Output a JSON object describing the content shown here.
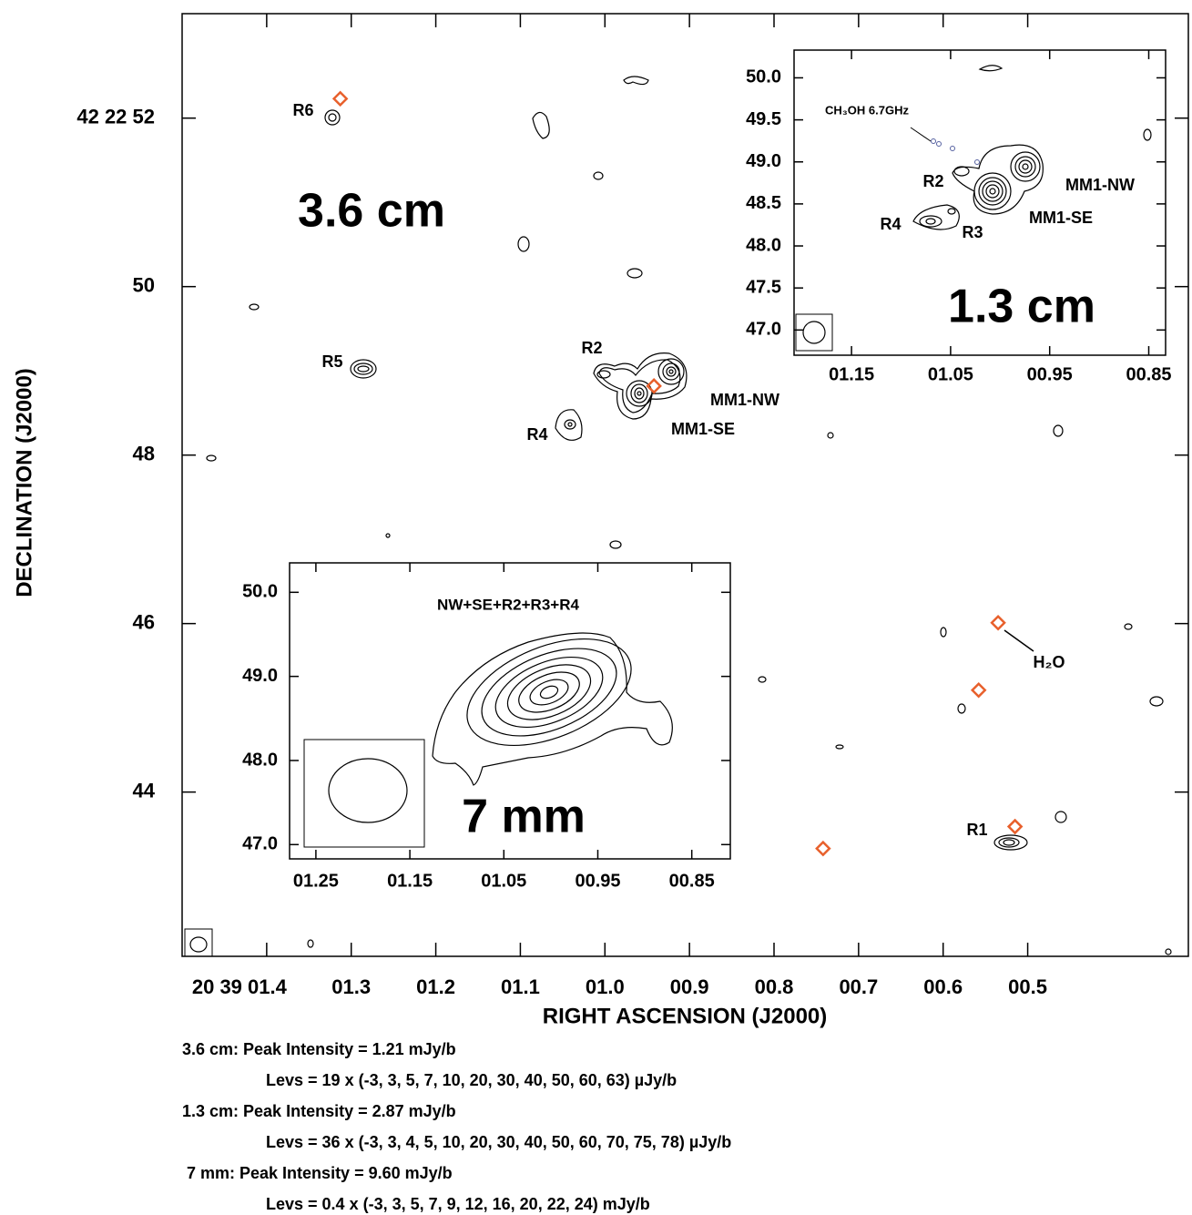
{
  "chart_data": [
    {
      "type": "contour",
      "title": "3.6 cm",
      "xlabel": "RIGHT ASCENSION (J2000)",
      "ylabel": "DECLINATION (J2000)",
      "xlim": [
        1.5,
        0.31
      ],
      "xticks": [
        {
          "value": 1.4,
          "label": "20 39 01.4"
        },
        {
          "value": 1.3,
          "label": "01.3"
        },
        {
          "value": 1.2,
          "label": "01.2"
        },
        {
          "value": 1.1,
          "label": "01.1"
        },
        {
          "value": 1.0,
          "label": "01.0"
        },
        {
          "value": 0.9,
          "label": "00.9"
        },
        {
          "value": 0.8,
          "label": "00.8"
        },
        {
          "value": 0.7,
          "label": "00.7"
        },
        {
          "value": 0.6,
          "label": "00.6"
        },
        {
          "value": 0.5,
          "label": "00.5"
        }
      ],
      "ylim": [
        42.05,
        53.24
      ],
      "yticks": [
        {
          "value": 52,
          "label": "42 22 52"
        },
        50,
        48,
        46,
        44
      ],
      "x": [
        1.313,
        0.942,
        0.535,
        0.558,
        0.515,
        0.742
      ],
      "values": [
        52.23,
        48.82,
        46.01,
        45.21,
        43.59,
        43.33
      ],
      "color": "#e8602c",
      "annotations": [
        "R6",
        "R5",
        "R2",
        "R4",
        "MM1-NW",
        "MM1-SE",
        "H₂O",
        "R1"
      ]
    },
    {
      "type": "contour",
      "title": "1.3 cm",
      "xlim": [
        1.208,
        0.833
      ],
      "xticks": [
        {
          "value": 1.15,
          "label": "01.15"
        },
        {
          "value": 1.05,
          "label": "01.05"
        },
        {
          "value": 0.95,
          "label": "00.95"
        },
        {
          "value": 0.85,
          "label": "00.85"
        }
      ],
      "ylim": [
        46.7,
        50.33
      ],
      "yticks": [
        {
          "value": 47,
          "label": "47.0"
        },
        47.5,
        {
          "value": 48,
          "label": "48.0"
        },
        48.5,
        {
          "value": 49,
          "label": "49.0"
        },
        49.5,
        {
          "value": 50,
          "label": "50.0"
        }
      ],
      "annotations": [
        "CH₃OH 6.7GHz",
        "R2",
        "R4",
        "R3",
        "MM1-NW",
        "MM1-SE"
      ]
    },
    {
      "type": "contour",
      "title": "7 mm",
      "subtitle": "NW+SE+R2+R3+R4",
      "xlim": [
        1.278,
        0.809
      ],
      "xticks": [
        {
          "value": 1.25,
          "label": "01.25"
        },
        {
          "value": 1.15,
          "label": "01.15"
        },
        {
          "value": 1.05,
          "label": "01.05"
        },
        {
          "value": 0.95,
          "label": "00.95"
        },
        {
          "value": 0.85,
          "label": "00.85"
        }
      ],
      "ylim": [
        46.83,
        50.35
      ],
      "yticks": [
        {
          "value": 47,
          "label": "47.0"
        },
        {
          "value": 48,
          "label": "48.0"
        },
        {
          "value": 49,
          "label": "49.0"
        },
        {
          "value": 50,
          "label": "50.0"
        }
      ]
    }
  ],
  "footnotes": [
    "3.6 cm:  Peak Intensity = 1.21 mJy/b",
    "Levs = 19 x (-3, 3, 5, 7, 10, 20, 30, 40, 50, 60, 63)  µJy/b",
    "1.3 cm:  Peak Intensity = 2.87 mJy/b",
    "Levs = 36 x (-3, 3, 4, 5, 10, 20, 30, 40, 50, 60, 70, 75, 78)  µJy/b",
    "7 mm:  Peak Intensity = 9.60 mJy/b",
    "Levs = 0.4 x (-3, 3, 5, 7, 9, 12, 16, 20, 22, 24) mJy/b"
  ]
}
